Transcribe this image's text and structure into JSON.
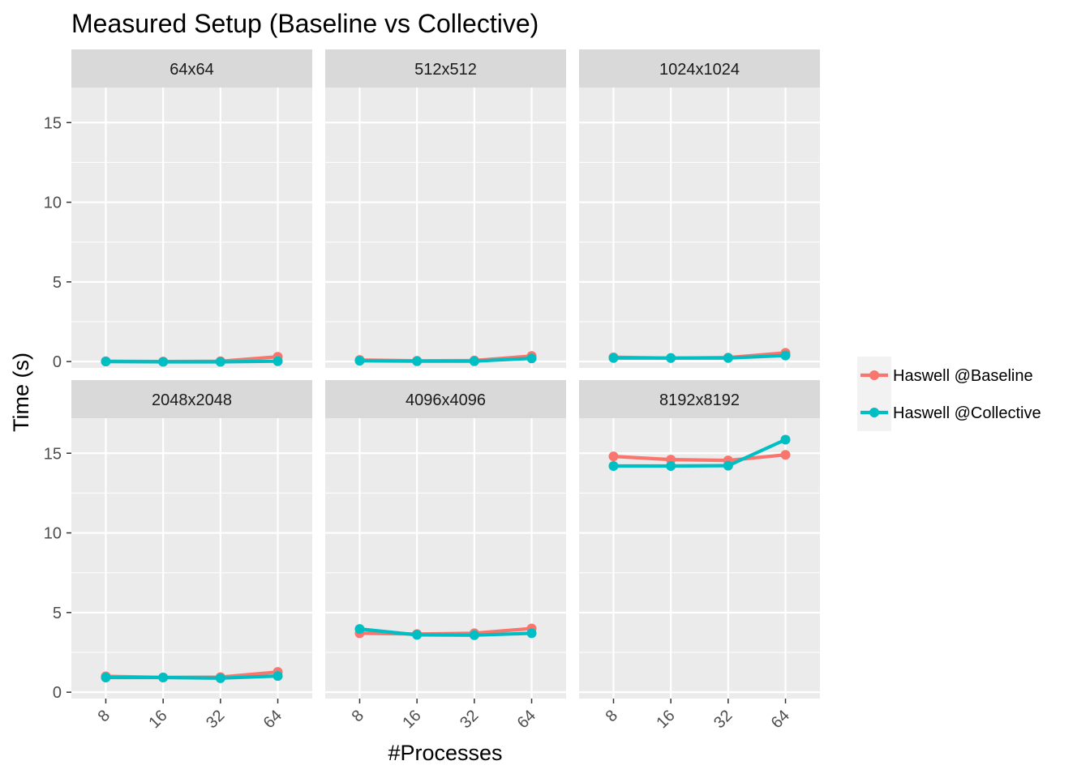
{
  "chart_data": {
    "type": "line",
    "title": "Measured Setup (Baseline vs Collective)",
    "xlabel": "#Processes",
    "ylabel": "Time (s)",
    "x_categories": [
      "8",
      "16",
      "32",
      "64"
    ],
    "ylim": [
      -0.4,
      17.2
    ],
    "y_ticks": [
      0,
      5,
      10,
      15
    ],
    "grid": true,
    "legend_position": "right",
    "colors": {
      "Haswell @Baseline": "#F8766D",
      "Haswell @Collective": "#00BFC4"
    },
    "legend": [
      "Haswell @Baseline",
      "Haswell @Collective"
    ],
    "panels": [
      {
        "label": "64x64",
        "series": [
          {
            "name": "Haswell @Baseline",
            "values": [
              0.02,
              0.0,
              0.02,
              0.3
            ]
          },
          {
            "name": "Haswell @Collective",
            "values": [
              0.0,
              -0.02,
              -0.02,
              0.02
            ]
          }
        ]
      },
      {
        "label": "512x512",
        "series": [
          {
            "name": "Haswell @Baseline",
            "values": [
              0.1,
              0.05,
              0.07,
              0.35
            ]
          },
          {
            "name": "Haswell @Collective",
            "values": [
              0.05,
              0.02,
              0.02,
              0.2
            ]
          }
        ]
      },
      {
        "label": "1024x1024",
        "series": [
          {
            "name": "Haswell @Baseline",
            "values": [
              0.27,
              0.22,
              0.25,
              0.55
            ]
          },
          {
            "name": "Haswell @Collective",
            "values": [
              0.22,
              0.22,
              0.22,
              0.38
            ]
          }
        ]
      },
      {
        "label": "2048x2048",
        "series": [
          {
            "name": "Haswell @Baseline",
            "values": [
              1.0,
              0.93,
              0.95,
              1.27
            ]
          },
          {
            "name": "Haswell @Collective",
            "values": [
              0.92,
              0.92,
              0.88,
              1.02
            ]
          }
        ]
      },
      {
        "label": "4096x4096",
        "series": [
          {
            "name": "Haswell @Baseline",
            "values": [
              3.7,
              3.65,
              3.7,
              4.0
            ]
          },
          {
            "name": "Haswell @Collective",
            "values": [
              3.97,
              3.6,
              3.58,
              3.7
            ]
          }
        ]
      },
      {
        "label": "8192x8192",
        "series": [
          {
            "name": "Haswell @Baseline",
            "values": [
              14.8,
              14.6,
              14.55,
              14.9
            ]
          },
          {
            "name": "Haswell @Collective",
            "values": [
              14.2,
              14.2,
              14.22,
              15.85
            ]
          }
        ]
      }
    ]
  }
}
